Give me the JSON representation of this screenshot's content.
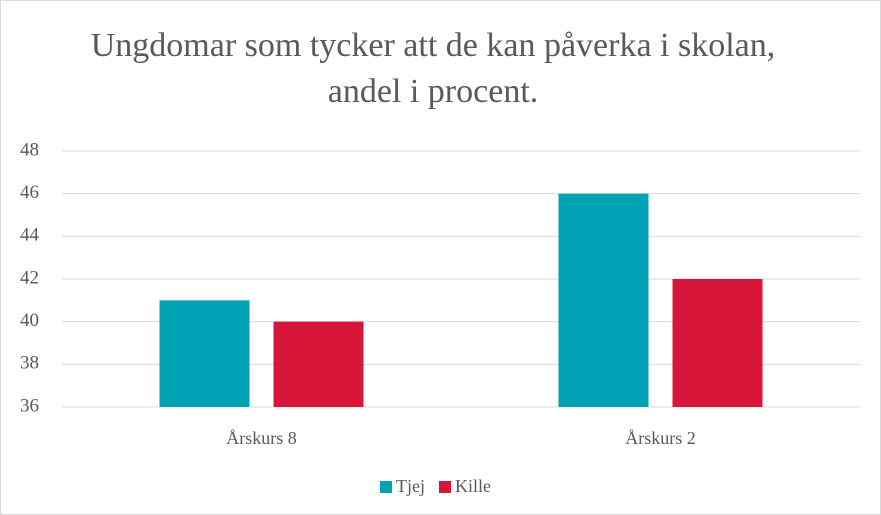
{
  "chart_data": {
    "type": "bar",
    "title": "Ungdomar som tycker att de kan påverka i skolan, andel i procent.",
    "title_lines": [
      "Ungdomar som tycker att de kan påverka i skolan,",
      "andel i procent."
    ],
    "categories": [
      "Årskurs 8",
      "Årskurs 2"
    ],
    "series": [
      {
        "name": "Tjej",
        "color": "#00a3b4",
        "values": [
          41,
          46
        ]
      },
      {
        "name": "Kille",
        "color": "#d7163a",
        "values": [
          40,
          42
        ]
      }
    ],
    "ylim": [
      36,
      48
    ],
    "yticks": [
      36,
      38,
      40,
      42,
      44,
      46,
      48
    ],
    "grid": true,
    "legend": "bottom"
  }
}
